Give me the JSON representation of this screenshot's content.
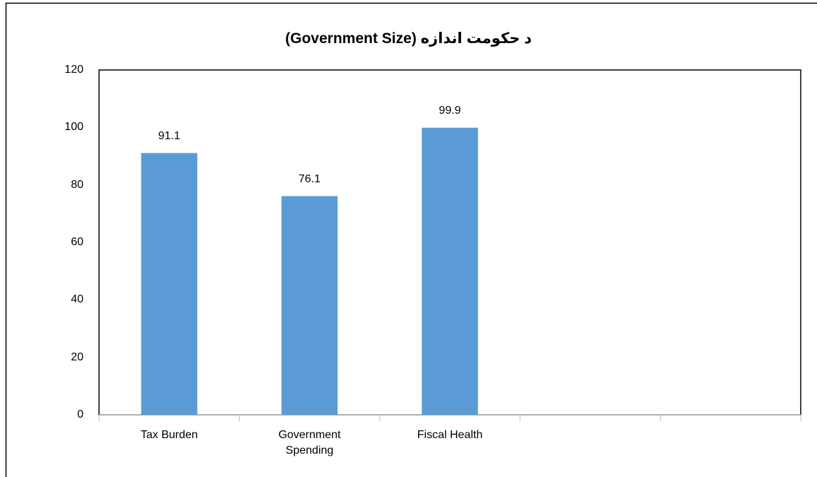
{
  "chart_data": {
    "type": "bar",
    "title": "د حکومت اندازه (Government Size)",
    "categories": [
      "Tax Burden",
      "Government Spending",
      "Fiscal Health",
      null,
      null
    ],
    "values": [
      91.1,
      76.1,
      99.9,
      null,
      null
    ],
    "color": "#5b9bd5",
    "ylim": [
      0,
      120
    ],
    "yticks": [
      0,
      20,
      40,
      60,
      80,
      100,
      120
    ],
    "grid": false
  }
}
